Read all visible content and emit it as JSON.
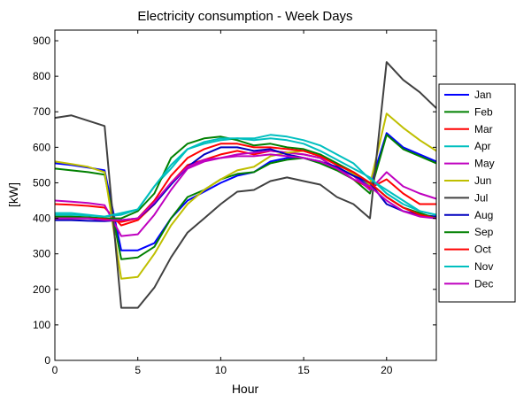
{
  "chart_data": {
    "type": "line",
    "title": "Electricity consumption - Week Days",
    "xlabel": "Hour",
    "ylabel": "[kW]",
    "xlim": [
      0,
      23
    ],
    "ylim": [
      0,
      930
    ],
    "xticks": [
      0,
      5,
      10,
      15,
      20
    ],
    "yticks": [
      0,
      100,
      200,
      300,
      400,
      500,
      600,
      700,
      800,
      900
    ],
    "grid": false,
    "legend_position": "right",
    "x": [
      0,
      1,
      2,
      3,
      4,
      5,
      6,
      7,
      8,
      9,
      10,
      11,
      12,
      13,
      14,
      15,
      16,
      17,
      18,
      19,
      20,
      21,
      22,
      23
    ],
    "series": [
      {
        "name": "Jan",
        "color": "#0000ff",
        "values": [
          555,
          550,
          543,
          535,
          310,
          310,
          330,
          400,
          450,
          475,
          500,
          520,
          530,
          560,
          570,
          570,
          560,
          540,
          520,
          490,
          640,
          600,
          580,
          560
        ]
      },
      {
        "name": "Feb",
        "color": "#008000",
        "values": [
          540,
          535,
          530,
          523,
          285,
          290,
          320,
          400,
          460,
          480,
          510,
          525,
          530,
          555,
          565,
          570,
          555,
          535,
          510,
          470,
          635,
          595,
          575,
          555
        ]
      },
      {
        "name": "Mar",
        "color": "#ff0000",
        "values": [
          440,
          438,
          435,
          430,
          380,
          395,
          440,
          500,
          550,
          565,
          580,
          590,
          580,
          590,
          585,
          580,
          570,
          540,
          510,
          485,
          510,
          470,
          440,
          440
        ]
      },
      {
        "name": "Apr",
        "color": "#00bfbf",
        "values": [
          415,
          415,
          410,
          405,
          410,
          425,
          490,
          540,
          595,
          610,
          620,
          625,
          625,
          635,
          630,
          620,
          605,
          580,
          555,
          510,
          480,
          450,
          420,
          410
        ]
      },
      {
        "name": "May",
        "color": "#bf00bf",
        "values": [
          450,
          447,
          443,
          437,
          350,
          355,
          410,
          480,
          540,
          560,
          570,
          580,
          585,
          590,
          585,
          580,
          570,
          540,
          520,
          480,
          530,
          490,
          470,
          455
        ]
      },
      {
        "name": "Jun",
        "color": "#bfbf00",
        "values": [
          560,
          553,
          545,
          530,
          230,
          235,
          300,
          380,
          440,
          480,
          510,
          535,
          545,
          575,
          585,
          590,
          575,
          555,
          525,
          495,
          695,
          655,
          620,
          590
        ]
      },
      {
        "name": "Jul",
        "color": "#404040",
        "values": [
          683,
          690,
          675,
          660,
          148,
          148,
          205,
          290,
          360,
          400,
          440,
          475,
          480,
          505,
          515,
          505,
          495,
          460,
          440,
          400,
          840,
          790,
          755,
          710
        ]
      },
      {
        "name": "Aug",
        "color": "#0000bf",
        "values": [
          395,
          395,
          393,
          392,
          395,
          400,
          440,
          495,
          545,
          580,
          600,
          600,
          590,
          595,
          580,
          570,
          560,
          545,
          520,
          500,
          440,
          420,
          410,
          405
        ]
      },
      {
        "name": "Sep",
        "color": "#008000",
        "values": [
          405,
          405,
          403,
          400,
          400,
          420,
          470,
          570,
          610,
          625,
          630,
          620,
          605,
          610,
          600,
          595,
          580,
          555,
          530,
          500,
          460,
          430,
          415,
          400
        ]
      },
      {
        "name": "Oct",
        "color": "#ff0000",
        "values": [
          400,
          400,
          400,
          398,
          390,
          400,
          450,
          520,
          570,
          595,
          610,
          610,
          600,
          600,
          595,
          590,
          575,
          550,
          530,
          500,
          460,
          430,
          410,
          400
        ]
      },
      {
        "name": "Nov",
        "color": "#00bfbf",
        "values": [
          410,
          410,
          408,
          405,
          415,
          425,
          490,
          550,
          595,
          615,
          625,
          625,
          620,
          625,
          620,
          610,
          590,
          565,
          540,
          515,
          470,
          440,
          420,
          410
        ]
      },
      {
        "name": "Dec",
        "color": "#bf00bf",
        "values": [
          400,
          400,
          400,
          395,
          395,
          400,
          445,
          500,
          545,
          565,
          570,
          575,
          575,
          580,
          575,
          570,
          560,
          540,
          510,
          490,
          450,
          420,
          405,
          400
        ]
      }
    ]
  }
}
